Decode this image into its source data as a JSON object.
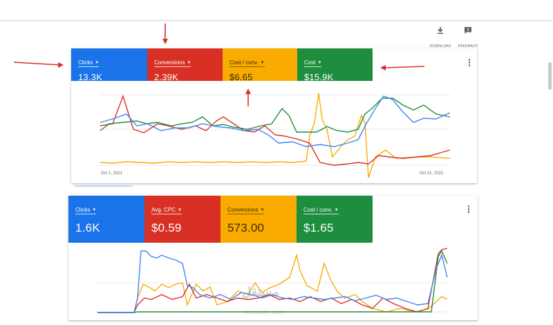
{
  "toolbar": {
    "download_label": "DOWNLOAD",
    "feedback_label": "FEEDBACK"
  },
  "card1": {
    "metrics": [
      {
        "label": "Clicks",
        "value": "13.3K",
        "color": "#1a73e8"
      },
      {
        "label": "Conversions",
        "value": "2.39K",
        "color": "#d93025"
      },
      {
        "label": "Cost / conv.",
        "value": "$6.65",
        "color": "#f9ab00"
      },
      {
        "label": "Cost",
        "value": "$15.9K",
        "color": "#1e8e3e"
      }
    ],
    "date_start": "Oct 1, 2021",
    "date_end": "Oct 31, 2021"
  },
  "card2": {
    "metrics": [
      {
        "label": "Clicks",
        "value": "1.6K",
        "color": "#1a73e8"
      },
      {
        "label": "Avg. CPC",
        "value": "$0.59",
        "color": "#d93025"
      },
      {
        "label": "Conversions",
        "value": "573.00",
        "color": "#f9ab00"
      },
      {
        "label": "Cost / conv.",
        "value": "$1.65",
        "color": "#1e8e3e"
      }
    ]
  },
  "watermark": {
    "text": "مستقل",
    "url": "mostaql.com"
  }
}
